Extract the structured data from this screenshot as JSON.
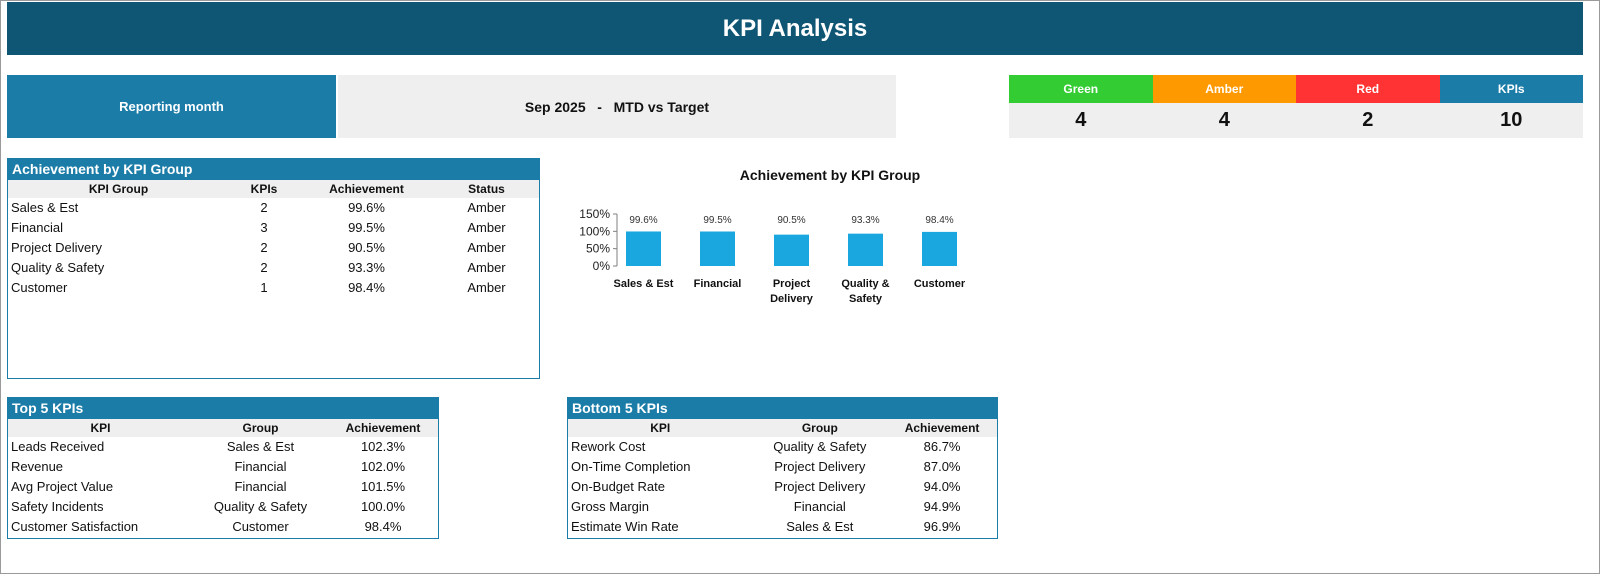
{
  "title": "KPI Analysis",
  "reporting": {
    "label": "Reporting month",
    "value": "Sep 2025   -   MTD vs Target"
  },
  "summary": [
    {
      "label": "Green",
      "value": "4",
      "color": "#33cc33"
    },
    {
      "label": "Amber",
      "value": "4",
      "color": "#ff9900"
    },
    {
      "label": "Red",
      "value": "2",
      "color": "#ff3333"
    },
    {
      "label": "KPIs",
      "value": "10",
      "color": "#1b7ca8"
    }
  ],
  "group_table": {
    "title": "Achievement by KPI Group",
    "headers": [
      "KPI Group",
      "KPIs",
      "Achievement",
      "Status"
    ],
    "rows": [
      [
        "Sales & Est",
        "2",
        "99.6%",
        "Amber"
      ],
      [
        "Financial",
        "3",
        "99.5%",
        "Amber"
      ],
      [
        "Project Delivery",
        "2",
        "90.5%",
        "Amber"
      ],
      [
        "Quality & Safety",
        "2",
        "93.3%",
        "Amber"
      ],
      [
        "Customer",
        "1",
        "98.4%",
        "Amber"
      ]
    ]
  },
  "chart_data": {
    "type": "bar",
    "title": "Achievement by KPI Group",
    "categories": [
      "Sales & Est",
      "Financial",
      "Project Delivery",
      "Quality & Safety",
      "Customer"
    ],
    "values": [
      99.6,
      99.5,
      90.5,
      93.3,
      98.4
    ],
    "data_labels": [
      "99.6%",
      "99.5%",
      "90.5%",
      "93.3%",
      "98.4%"
    ],
    "ylim": [
      0,
      150
    ],
    "yticks": [
      "0%",
      "50%",
      "100%",
      "150%"
    ],
    "grid": false,
    "bar_color": "#1aa7e0"
  },
  "top5": {
    "title": "Top 5 KPIs",
    "headers": [
      "KPI",
      "Group",
      "Achievement"
    ],
    "rows": [
      [
        "Leads Received",
        "Sales & Est",
        "102.3%"
      ],
      [
        "Revenue",
        "Financial",
        "102.0%"
      ],
      [
        "Avg Project Value",
        "Financial",
        "101.5%"
      ],
      [
        "Safety Incidents",
        "Quality & Safety",
        "100.0%"
      ],
      [
        "Customer Satisfaction",
        "Customer",
        "98.4%"
      ]
    ]
  },
  "bottom5": {
    "title": "Bottom 5 KPIs",
    "headers": [
      "KPI",
      "Group",
      "Achievement"
    ],
    "rows": [
      [
        "Rework Cost",
        "Quality & Safety",
        "86.7%"
      ],
      [
        "On-Time Completion",
        "Project Delivery",
        "87.0%"
      ],
      [
        "On-Budget Rate",
        "Project Delivery",
        "94.0%"
      ],
      [
        "Gross Margin",
        "Financial",
        "94.9%"
      ],
      [
        "Estimate Win Rate",
        "Sales & Est",
        "96.9%"
      ]
    ]
  }
}
